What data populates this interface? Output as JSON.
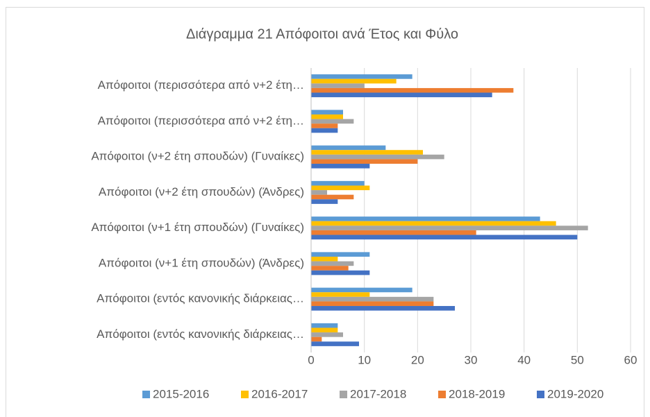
{
  "chart_data": {
    "type": "bar",
    "orientation": "horizontal",
    "title": "Διάγραμμα 21 Απόφοιτοι ανά Έτος και Φύλο",
    "categories": [
      "Απόφοιτοι (περισσότερα από ν+2 έτη…",
      "Απόφοιτοι (περισσότερα από ν+2 έτη…",
      "Απόφοιτοι (ν+2 έτη σπουδών) (Γυναίκες)",
      "Απόφοιτοι (ν+2 έτη σπουδών) (Άνδρες)",
      "Απόφοιτοι (ν+1 έτη σπουδών) (Γυναίκες)",
      "Απόφοιτοι (ν+1 έτη σπουδών) (Άνδρες)",
      "Απόφοιτοι (εντός κανονικής διάρκειας…",
      "Απόφοιτοι (εντός κανονικής διάρκειας…"
    ],
    "series": [
      {
        "name": "2015-2016",
        "color": "#5b9bd5",
        "values": [
          19,
          6,
          14,
          10,
          43,
          11,
          19,
          5
        ]
      },
      {
        "name": "2016-2017",
        "color": "#ffc000",
        "values": [
          16,
          6,
          21,
          11,
          46,
          5,
          11,
          5
        ]
      },
      {
        "name": "2017-2018",
        "color": "#a5a5a5",
        "values": [
          10,
          8,
          25,
          3,
          52,
          8,
          23,
          6
        ]
      },
      {
        "name": "2018-2019",
        "color": "#ed7d31",
        "values": [
          38,
          5,
          20,
          8,
          31,
          7,
          23,
          2
        ]
      },
      {
        "name": "2019-2020",
        "color": "#4472c4",
        "values": [
          34,
          5,
          11,
          5,
          50,
          11,
          27,
          9
        ]
      }
    ],
    "xlim": [
      0,
      60
    ],
    "xticks": [
      0,
      10,
      20,
      30,
      40,
      50,
      60
    ],
    "grid": true,
    "legend": "bottom"
  }
}
